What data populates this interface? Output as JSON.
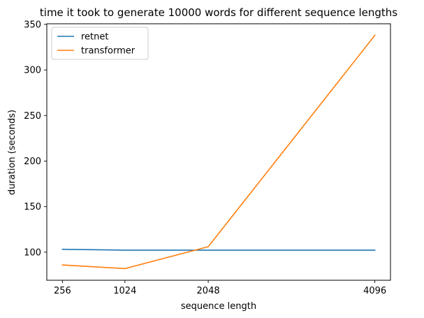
{
  "chart_data": {
    "type": "line",
    "title": "time it took to generate 10000 words for different sequence lengths",
    "xlabel": "sequence length",
    "ylabel": "duration (seconds)",
    "x": [
      256,
      1024,
      2048,
      4096
    ],
    "xticks": [
      256,
      1024,
      2048,
      4096
    ],
    "xtick_labels": [
      "256",
      "1024",
      "2048",
      "4096"
    ],
    "yticks": [
      100,
      150,
      200,
      250,
      300,
      350
    ],
    "ytick_labels": [
      "100",
      "150",
      "200",
      "250",
      "300",
      "350"
    ],
    "xlim": [
      64,
      4288
    ],
    "ylim": [
      69.2,
      350.7
    ],
    "grid": false,
    "legend_position": "top-left",
    "series": [
      {
        "name": "retnet",
        "color": "#1f77b4",
        "values": [
          103.2,
          102.2,
          102.2,
          102.2
        ]
      },
      {
        "name": "transformer",
        "color": "#ff7f0e",
        "values": [
          86.0,
          82.0,
          106.0,
          338.0
        ]
      }
    ]
  }
}
